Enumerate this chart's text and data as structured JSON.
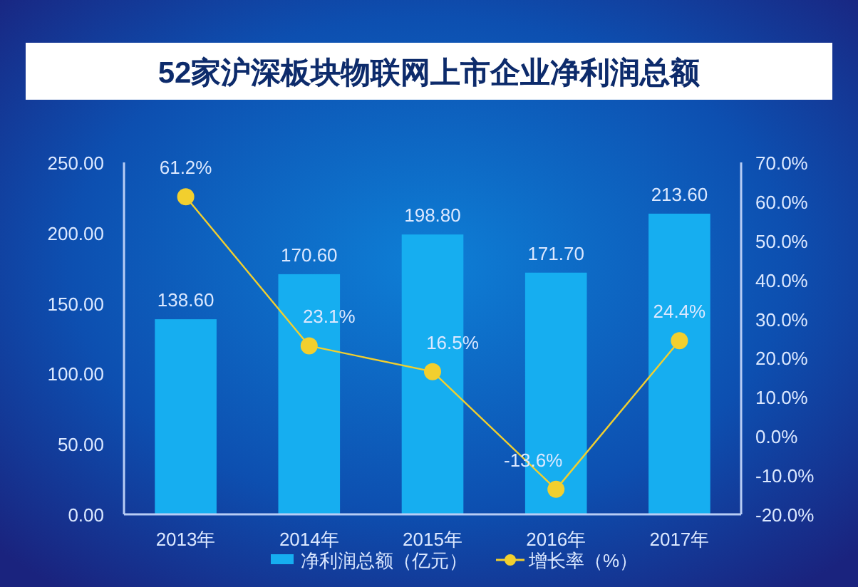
{
  "chart_data": {
    "type": "bar",
    "title": "52家沪深板块物联网上市企业净利润总额",
    "categories": [
      "2013年",
      "2014年",
      "2015年",
      "2016年",
      "2017年"
    ],
    "series": [
      {
        "name": "净利润总额（亿元）",
        "color": "#16aef0",
        "values": [
          138.6,
          170.6,
          198.8,
          171.7,
          213.6
        ],
        "value_labels": [
          "138.60",
          "170.60",
          "198.80",
          "171.70",
          "213.60"
        ]
      },
      {
        "name": "增长率（%）",
        "type": "line",
        "axis": "y2",
        "color": "#f2cf2e",
        "values": [
          61.2,
          23.1,
          16.5,
          -13.6,
          24.4
        ],
        "value_labels": [
          "61.2%",
          "23.1%",
          "16.5%",
          "-13.6%",
          "24.4%"
        ],
        "marker": "circle"
      }
    ],
    "ylim": [
      0,
      250
    ],
    "yticks": [
      {
        "value": 0,
        "label": "0.00"
      },
      {
        "value": 50,
        "label": "50.00"
      },
      {
        "value": 100,
        "label": "100.00"
      },
      {
        "value": 150,
        "label": "150.00"
      },
      {
        "value": 200,
        "label": "200.00"
      },
      {
        "value": 250,
        "label": "250.00"
      }
    ],
    "y2lim": [
      -20,
      70
    ],
    "y2ticks": [
      {
        "value": -20,
        "label": "-20.0%"
      },
      {
        "value": -10,
        "label": "-10.0%"
      },
      {
        "value": 0,
        "label": "0.0%"
      },
      {
        "value": 10,
        "label": "10.0%"
      },
      {
        "value": 20,
        "label": "20.0%"
      },
      {
        "value": 30,
        "label": "30.0%"
      },
      {
        "value": 40,
        "label": "40.0%"
      },
      {
        "value": 50,
        "label": "50.0%"
      },
      {
        "value": 60,
        "label": "60.0%"
      },
      {
        "value": 70,
        "label": "70.0%"
      }
    ],
    "legend": "bottom",
    "grid": false
  }
}
